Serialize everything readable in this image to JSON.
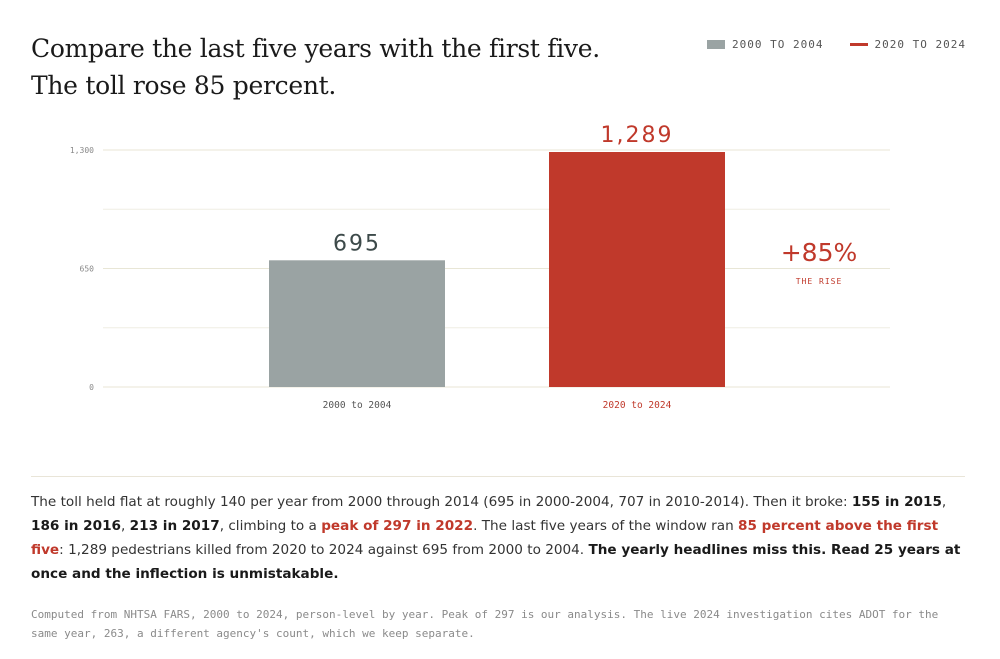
{
  "title": "Compare the last five years with the first five. The toll rose 85 percent.",
  "legend": [
    {
      "label": "2000 TO 2004",
      "color": "#9aa3a3",
      "style": "box"
    },
    {
      "label": "2020 TO 2024",
      "color": "#c0392b",
      "style": "line"
    }
  ],
  "chart_data": {
    "type": "bar",
    "categories": [
      "2000 to 2004",
      "2020 to 2024"
    ],
    "values": [
      695,
      1289
    ],
    "value_labels": [
      "695",
      "1,289"
    ],
    "colors": [
      "#9aa3a3",
      "#c0392b"
    ],
    "ylim": [
      0,
      1300
    ],
    "yticks": [
      0,
      650,
      1300
    ],
    "ytick_labels": [
      "0",
      "650",
      "1,300"
    ],
    "grid": true,
    "annotation": {
      "value": "+85%",
      "caption": "THE RISE",
      "color": "#c0392b"
    }
  },
  "body": {
    "p1": "The toll held flat at roughly 140 per year from 2000 through 2014 (695 in 2000-2004, 707 in 2010-2014). Then it broke: ",
    "b1": "155 in 2015",
    "p2": ", ",
    "b2": "186 in 2016",
    "p3": ", ",
    "b3": "213 in 2017",
    "p4": ", climbing to a ",
    "h1": "peak of 297 in 2022",
    "p5": ". The last five years of the window ran ",
    "h2": "85 percent above the first five",
    "p6": ": 1,289 pedestrians killed from 2020 to 2024 against 695 from 2000 to 2004. ",
    "b4": "The yearly headlines miss this. Read 25 years at once and the inflection is unmistakable."
  },
  "source": "Computed from NHTSA FARS, 2000 to 2024, person-level by year. Peak of 297 is our analysis. The live 2024 investigation cites ADOT for the same year, 263, a different agency's count, which we keep separate."
}
